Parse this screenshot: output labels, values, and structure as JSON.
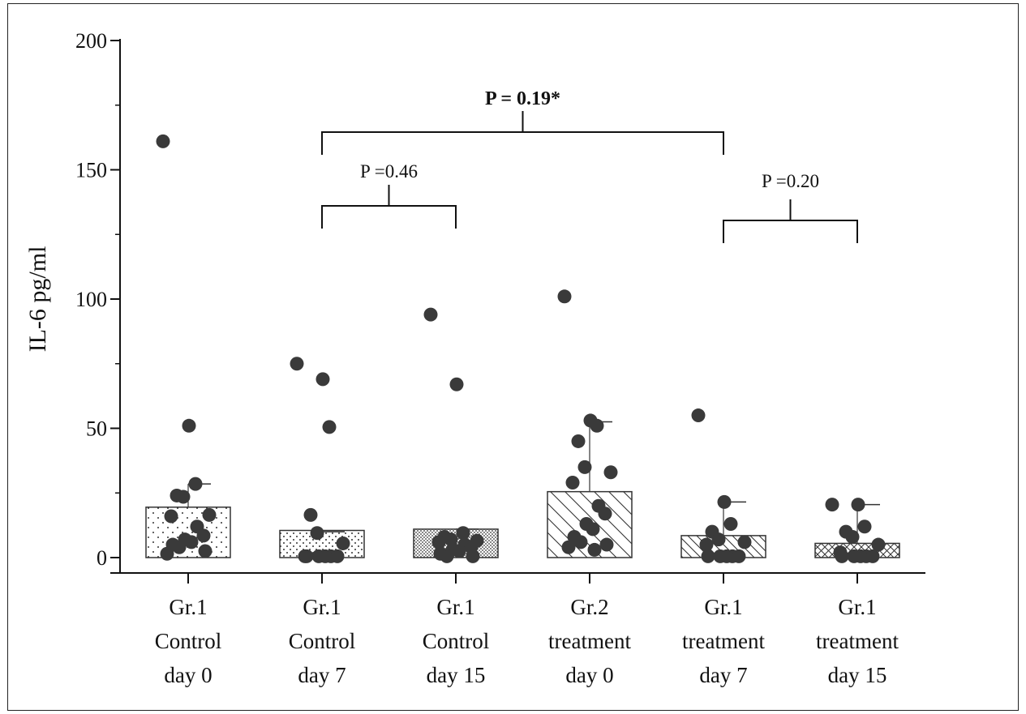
{
  "chart_data": {
    "type": "bar",
    "ylabel": "IL-6 pg/ml",
    "ylim": [
      0,
      200
    ],
    "yticks": [
      0,
      50,
      100,
      150,
      200
    ],
    "categories": [
      [
        "Gr.1",
        "Control",
        "day 0"
      ],
      [
        "Gr.1",
        "Control",
        "day 7"
      ],
      [
        "Gr.1",
        "Control",
        "day 15"
      ],
      [
        "Gr.2",
        "treatment",
        "day 0"
      ],
      [
        "Gr.1",
        "treatment",
        "day 7"
      ],
      [
        "Gr.1",
        "treatment",
        "day 15"
      ]
    ],
    "values": [
      19.5,
      10.5,
      11,
      25.5,
      8.5,
      5.5
    ],
    "error_upper": [
      28.5,
      10,
      11,
      52.5,
      21.5,
      20.5
    ],
    "patterns": [
      "dots-sparse",
      "dots-medium",
      "dots-dense",
      "diagonal-wide",
      "diagonal-narrow",
      "crosshatch"
    ],
    "points": [
      [
        161,
        51,
        28.5,
        24,
        23.5,
        16.5,
        16,
        12,
        8.5,
        7,
        6,
        5,
        4,
        2.5,
        1.5
      ],
      [
        75,
        69,
        50.5,
        16.5,
        9.5,
        5.5,
        0.5,
        0.5,
        0.5,
        0.5,
        0.5,
        0.5
      ],
      [
        94,
        67,
        9.5,
        8,
        7,
        6.5,
        6,
        5,
        4,
        3,
        2.5,
        1.5,
        0.5,
        0.5
      ],
      [
        101,
        53,
        51,
        45,
        35,
        33,
        29,
        20,
        17,
        13,
        11,
        8,
        6,
        5,
        4,
        3
      ],
      [
        55,
        21.5,
        13,
        10,
        7,
        6,
        5,
        0.5,
        0.5,
        0.5,
        0.5,
        0.5
      ],
      [
        20.5,
        20.5,
        12,
        10,
        8,
        5,
        2,
        0.5,
        0.5,
        0.5,
        0.5,
        0.5
      ]
    ],
    "comparisons": [
      {
        "from": 1,
        "to": 2,
        "label": "P =0.46",
        "bold": false
      },
      {
        "from": 1,
        "to": 4,
        "label": "P = 0.19*",
        "bold": true
      },
      {
        "from": 4,
        "to": 5,
        "label": "P =0.20",
        "bold": false
      }
    ],
    "colors": {
      "points": "#3a3a3a",
      "bars": "#333333",
      "axis": "#111111"
    }
  }
}
